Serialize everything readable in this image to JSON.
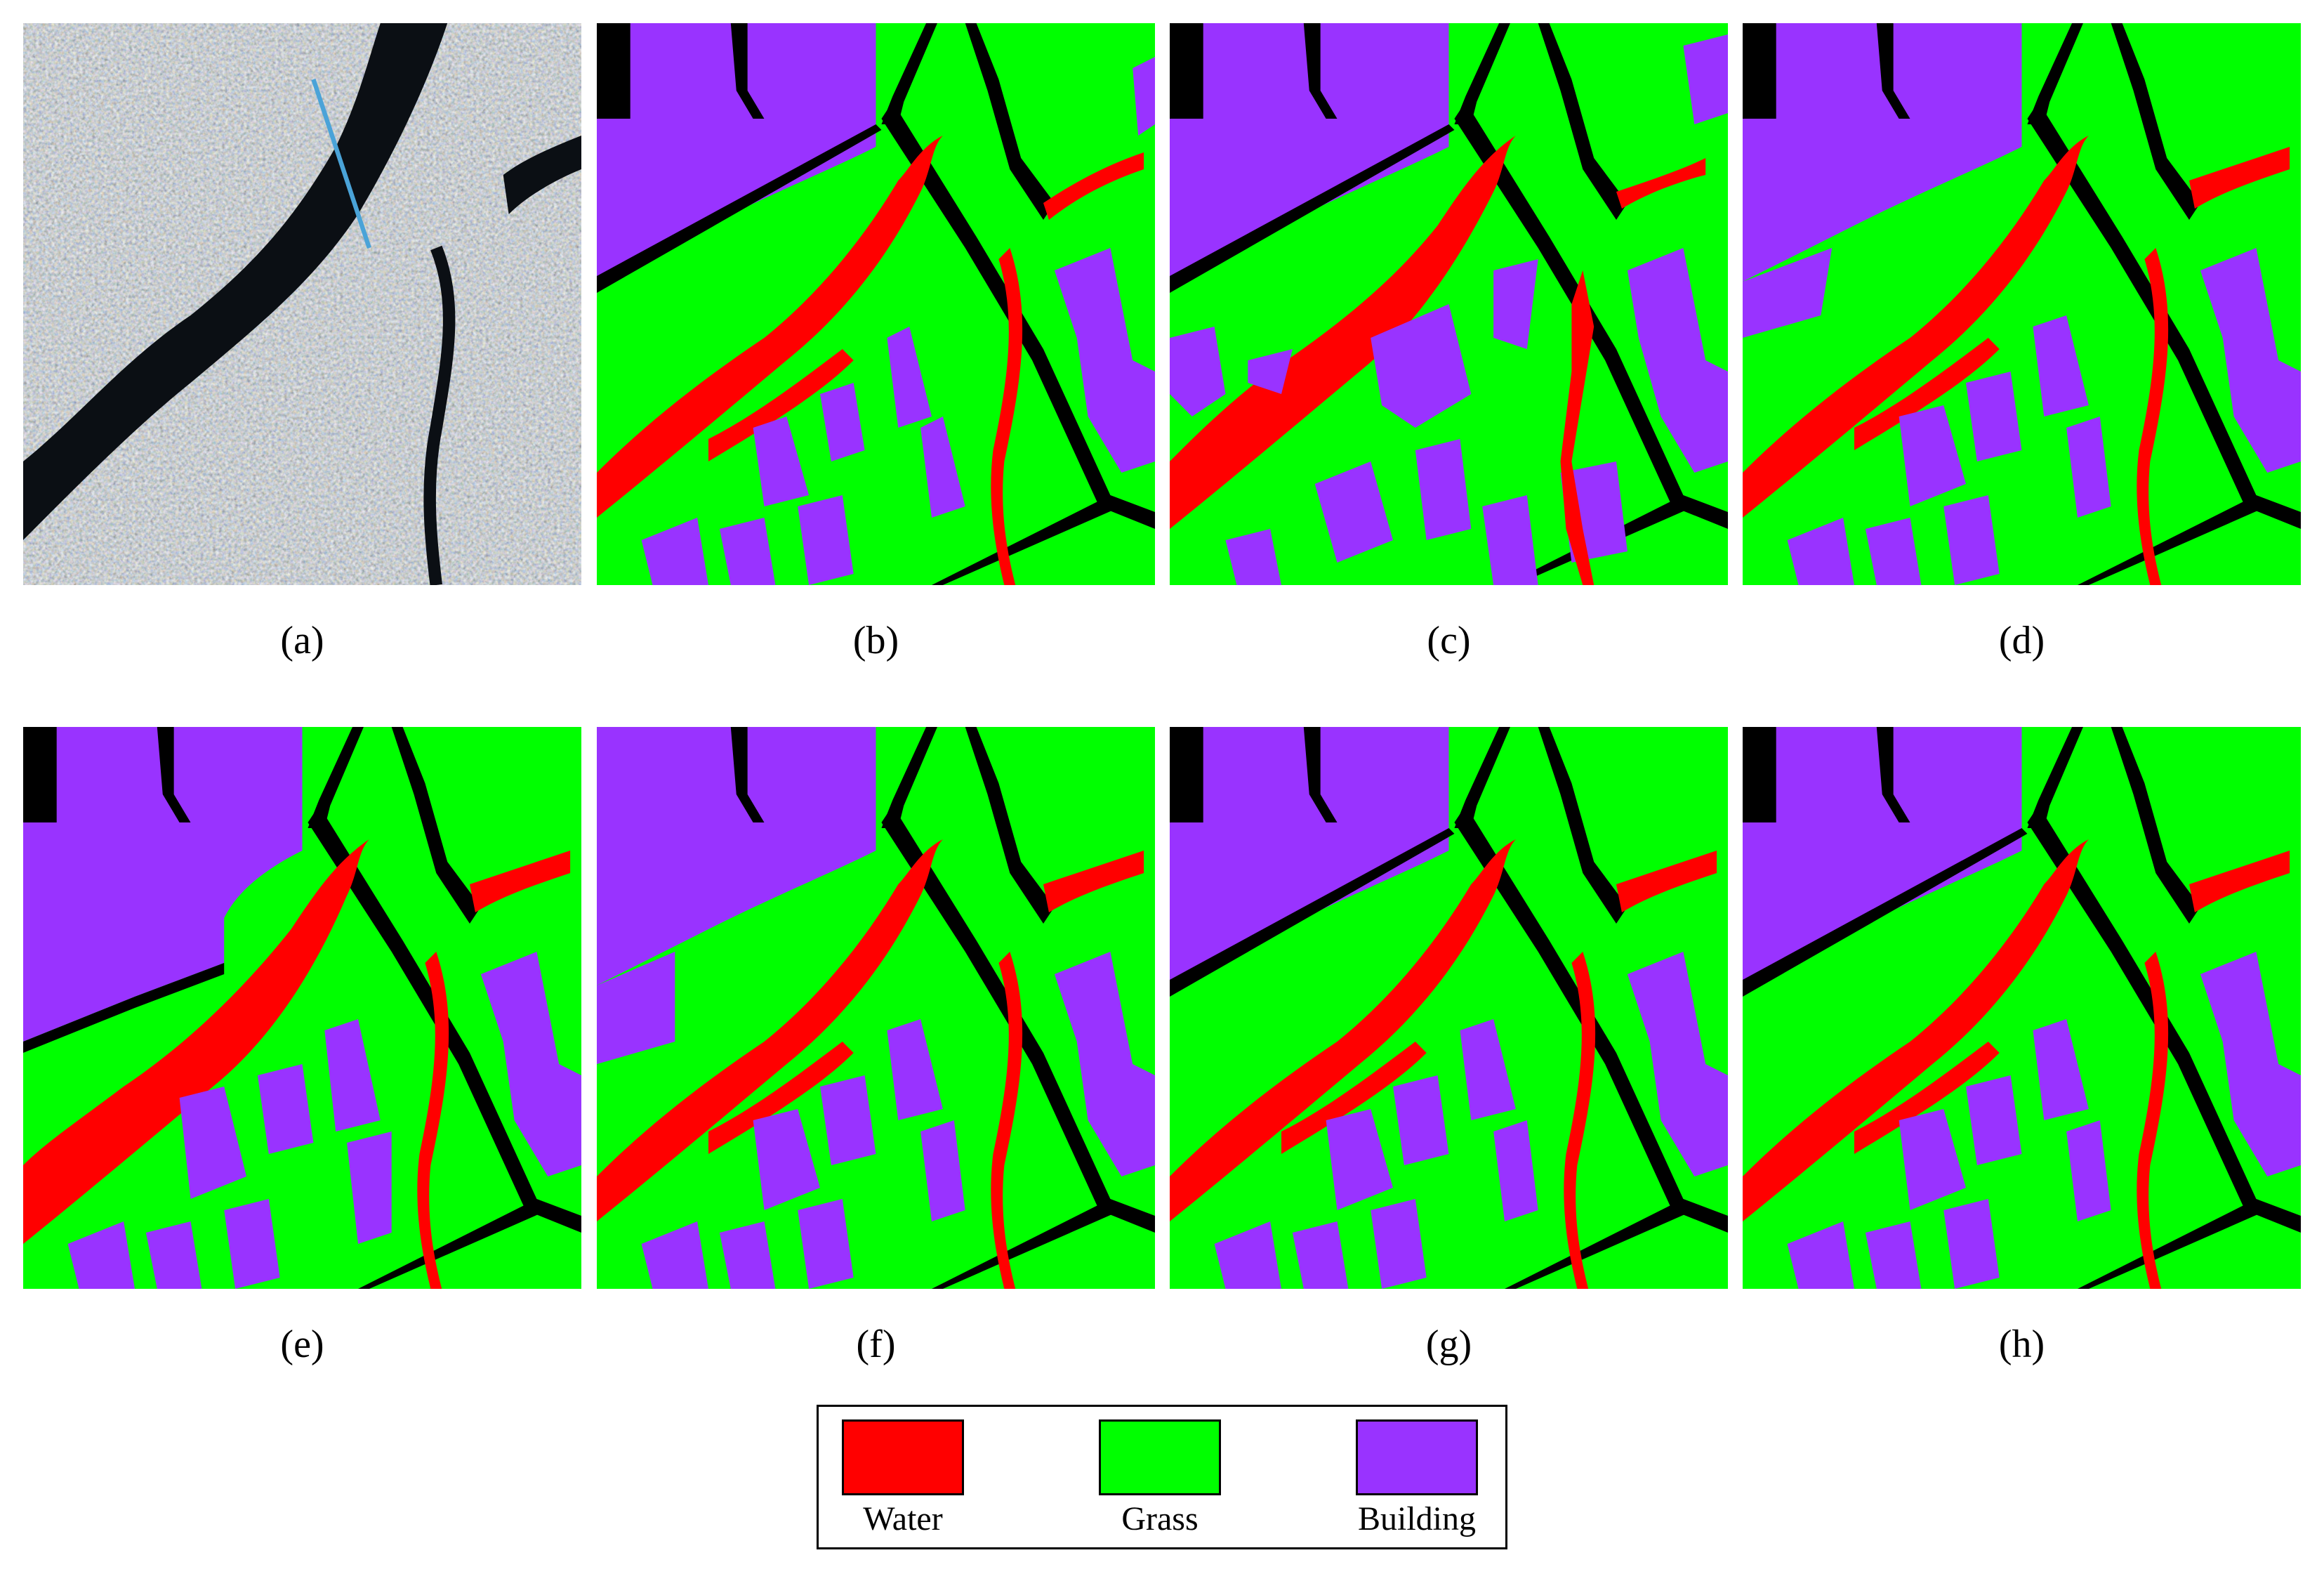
{
  "figure": {
    "panels": [
      {
        "id": "a",
        "caption": "(a)",
        "kind": "sar-image"
      },
      {
        "id": "b",
        "caption": "(b)",
        "kind": "ground-truth"
      },
      {
        "id": "c",
        "caption": "(c)",
        "kind": "classification-noisy"
      },
      {
        "id": "d",
        "caption": "(d)",
        "kind": "classification-noisy"
      },
      {
        "id": "e",
        "caption": "(e)",
        "kind": "classification-blocky"
      },
      {
        "id": "f",
        "caption": "(f)",
        "kind": "classification-noisy"
      },
      {
        "id": "g",
        "caption": "(g)",
        "kind": "classification-clean"
      },
      {
        "id": "h",
        "caption": "(h)",
        "kind": "classification-clean"
      }
    ],
    "legend": [
      {
        "label": "Water",
        "color": "#ff0000"
      },
      {
        "label": "Grass",
        "color": "#00ff00"
      },
      {
        "label": "Building",
        "color": "#9933ff"
      }
    ],
    "colors": {
      "water": "#ff0000",
      "grass": "#00ff00",
      "building": "#9933ff",
      "unlabeled": "#000000"
    }
  }
}
